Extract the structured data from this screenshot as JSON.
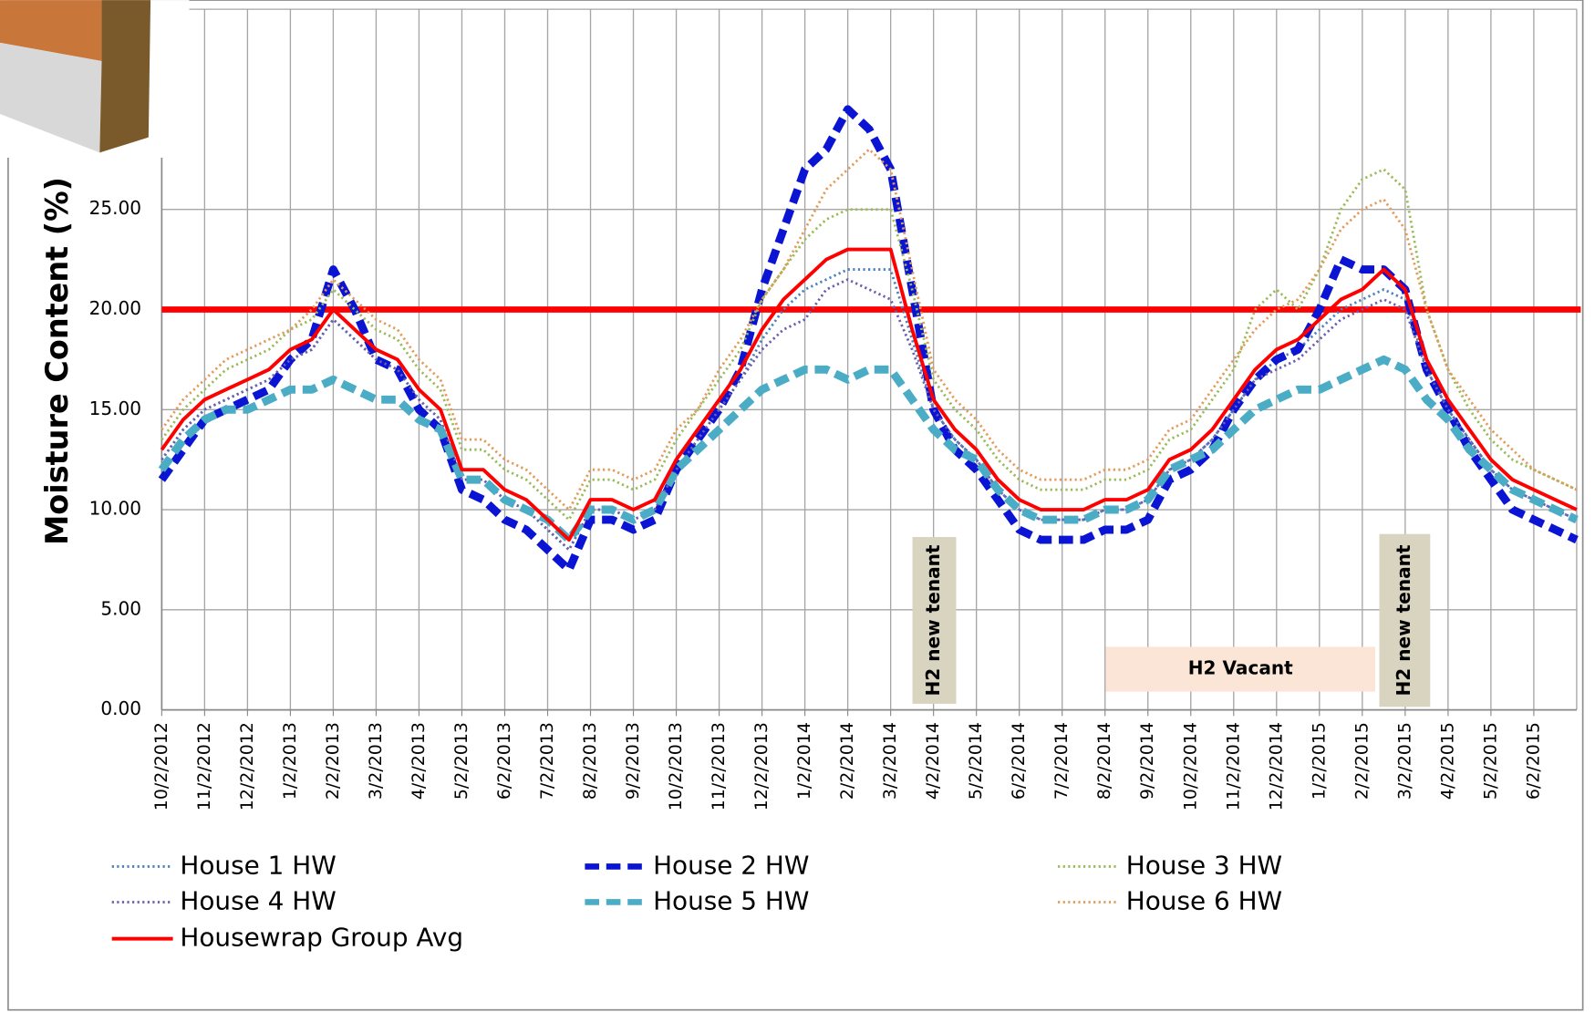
{
  "chart_data": {
    "type": "line",
    "y_label": "Moisture Content (%)",
    "categories": [
      "10/2/2012",
      null,
      "11/2/2012",
      null,
      "12/2/2012",
      null,
      "1/2/2013",
      null,
      "2/2/2013",
      null,
      "3/2/2013",
      null,
      "4/2/2013",
      null,
      "5/2/2013",
      null,
      "6/2/2013",
      null,
      "7/2/2013",
      null,
      "8/2/2013",
      null,
      "9/2/2013",
      null,
      "10/2/2013",
      null,
      "11/2/2013",
      null,
      "12/2/2013",
      null,
      "1/2/2014",
      null,
      "2/2/2014",
      null,
      "3/2/2014",
      null,
      "4/2/2014",
      null,
      "5/2/2014",
      null,
      "6/2/2014",
      null,
      "7/2/2014",
      null,
      "8/2/2014",
      null,
      "9/2/2014",
      null,
      "10/2/2014",
      null,
      "11/2/2014",
      null,
      "12/2/2014",
      null,
      "1/2/2015",
      null,
      "2/2/2015",
      null,
      "3/2/2015",
      null,
      "4/2/2015",
      null,
      "5/2/2015",
      null,
      "6/2/2015",
      null,
      null
    ],
    "series": [
      {
        "name": "House 1 HW",
        "color": "#4f81bd",
        "style": "dotted",
        "values": [
          12.5,
          14,
          15,
          15.5,
          16,
          16.5,
          17.5,
          18,
          19.5,
          18.5,
          17.5,
          17,
          15.5,
          14.5,
          11.5,
          11.5,
          10.5,
          10,
          9,
          8,
          10,
          10,
          9.5,
          10,
          12,
          13.5,
          15,
          16.5,
          18.5,
          20,
          21,
          21.5,
          22,
          22,
          22,
          18.5,
          15,
          13.5,
          12.5,
          11,
          10,
          9.5,
          9.5,
          9.5,
          10,
          10,
          10.5,
          12,
          12.5,
          13.5,
          15,
          16.5,
          17.5,
          18,
          19,
          20,
          20.5,
          21,
          20.5,
          17,
          15,
          13.5,
          12,
          11,
          10.5,
          10,
          9.5
        ]
      },
      {
        "name": "House 2 HW",
        "color": "#0a14d2",
        "style": "dashed",
        "values": [
          11.5,
          13,
          14.5,
          15,
          15.5,
          16,
          17.5,
          18.5,
          22,
          20,
          17.5,
          17,
          15,
          14,
          11,
          10.5,
          9.5,
          9,
          8,
          7,
          9.5,
          9.5,
          9,
          9.5,
          12,
          13.5,
          15,
          17,
          21,
          24,
          27,
          28,
          30,
          29,
          27,
          21,
          15,
          13,
          12,
          10.5,
          9,
          8.5,
          8.5,
          8.5,
          9,
          9,
          9.5,
          11.5,
          12,
          13,
          15,
          16.5,
          17.5,
          18,
          20,
          22.5,
          22,
          22,
          21,
          17,
          15,
          13,
          11.5,
          10,
          9.5,
          9,
          8.5
        ]
      },
      {
        "name": "House 3 HW",
        "color": "#9bbb59",
        "style": "dotted",
        "values": [
          13.5,
          15,
          16,
          17,
          17.5,
          18,
          19,
          19.5,
          21,
          20,
          19,
          18.5,
          17,
          16,
          13,
          13,
          12,
          11.5,
          10.5,
          9.5,
          11.5,
          11.5,
          11,
          11.5,
          13.5,
          15,
          16.5,
          18,
          20.5,
          22,
          23.5,
          24.5,
          25,
          25,
          25,
          21,
          16.5,
          15,
          14,
          12.5,
          11.5,
          11,
          11,
          11,
          11.5,
          11.5,
          12,
          13.5,
          14,
          15.5,
          17,
          20,
          21,
          20,
          22,
          25,
          26.5,
          27,
          26,
          20,
          17,
          15,
          13.5,
          12.5,
          12,
          11.5,
          11
        ]
      },
      {
        "name": "House 4 HW",
        "color": "#6a5fae",
        "style": "dotted",
        "values": [
          12.5,
          14,
          15,
          15.5,
          16,
          16.5,
          17.5,
          18,
          19.5,
          18.5,
          17.5,
          17,
          15.5,
          14.5,
          11.5,
          11.5,
          10.5,
          10,
          9,
          8,
          10,
          10,
          9.5,
          10,
          12,
          13.5,
          15,
          16.5,
          18,
          19,
          19.5,
          21,
          21.5,
          21,
          20.5,
          18,
          15,
          13.5,
          12.5,
          11,
          10,
          9.5,
          9.5,
          9.5,
          10,
          10,
          10.5,
          12,
          12.5,
          13.5,
          15,
          16.5,
          17,
          17.5,
          18.5,
          19.5,
          20,
          20.5,
          20,
          17,
          15,
          13.5,
          12,
          11,
          10.5,
          10,
          9.5
        ]
      },
      {
        "name": "House 5 HW",
        "color": "#4bacc6",
        "style": "dashed",
        "values": [
          12,
          13.5,
          14.5,
          15,
          15,
          15.5,
          16,
          16,
          16.5,
          16,
          15.5,
          15.5,
          14.5,
          14,
          11.5,
          11.5,
          10.5,
          10,
          9.5,
          8.5,
          10,
          10,
          9.5,
          10,
          12,
          13,
          14,
          15,
          16,
          16.5,
          17,
          17,
          16.5,
          17,
          17,
          15.5,
          14,
          13,
          12.5,
          11,
          10,
          9.5,
          9.5,
          9.5,
          10,
          10,
          10.5,
          12,
          12.5,
          13,
          14,
          15,
          15.5,
          16,
          16,
          16.5,
          17,
          17.5,
          17,
          15.5,
          14.5,
          13,
          12,
          11,
          10.5,
          10,
          9.5
        ]
      },
      {
        "name": "House 6 HW",
        "color": "#e39b5a",
        "style": "dotted",
        "values": [
          14,
          15.5,
          16.5,
          17.5,
          18,
          18.5,
          19,
          20,
          21.5,
          20.5,
          19.5,
          19,
          17.5,
          16.5,
          13.5,
          13.5,
          12.5,
          12,
          11,
          10,
          12,
          12,
          11.5,
          12,
          14,
          15,
          17,
          18.5,
          20.5,
          22,
          24,
          26,
          27,
          28,
          27,
          22,
          17,
          15.5,
          14.5,
          13,
          12,
          11.5,
          11.5,
          11.5,
          12,
          12,
          12.5,
          14,
          14.5,
          16,
          17.5,
          19,
          20,
          20.5,
          22,
          24,
          25,
          25.5,
          24,
          20,
          17,
          15.5,
          14,
          13,
          12,
          11.5,
          11
        ]
      },
      {
        "name": "Housewrap Group Avg",
        "color": "#ff0000",
        "style": "solid",
        "values": [
          13,
          14.5,
          15.5,
          16,
          16.5,
          17,
          18,
          18.5,
          20,
          19,
          18,
          17.5,
          16,
          15,
          12,
          12,
          11,
          10.5,
          9.5,
          8.5,
          10.5,
          10.5,
          10,
          10.5,
          12.5,
          14,
          15.5,
          17,
          19,
          20.5,
          21.5,
          22.5,
          23,
          23,
          23,
          19,
          15.5,
          14,
          13,
          11.5,
          10.5,
          10,
          10,
          10,
          10.5,
          10.5,
          11,
          12.5,
          13,
          14,
          15.5,
          17,
          18,
          18.5,
          19.5,
          20.5,
          21,
          22,
          21,
          17.5,
          15.5,
          14,
          12.5,
          11.5,
          11,
          10.5,
          10
        ]
      }
    ],
    "threshold": {
      "value": 20,
      "color": "#ff0000"
    },
    "annotations": [
      "H2 new tenant",
      "H2 Vacant",
      "H2 new tenant"
    ],
    "ylim": [
      0,
      35
    ],
    "yticks": [
      {
        "value": 0,
        "label": "0.00"
      },
      {
        "value": 5,
        "label": "5.00"
      },
      {
        "value": 10,
        "label": "10.00"
      },
      {
        "value": 15,
        "label": "15.00"
      },
      {
        "value": 20,
        "label": "20.00"
      },
      {
        "value": 25,
        "label": "25.00"
      }
    ],
    "grid": true
  }
}
